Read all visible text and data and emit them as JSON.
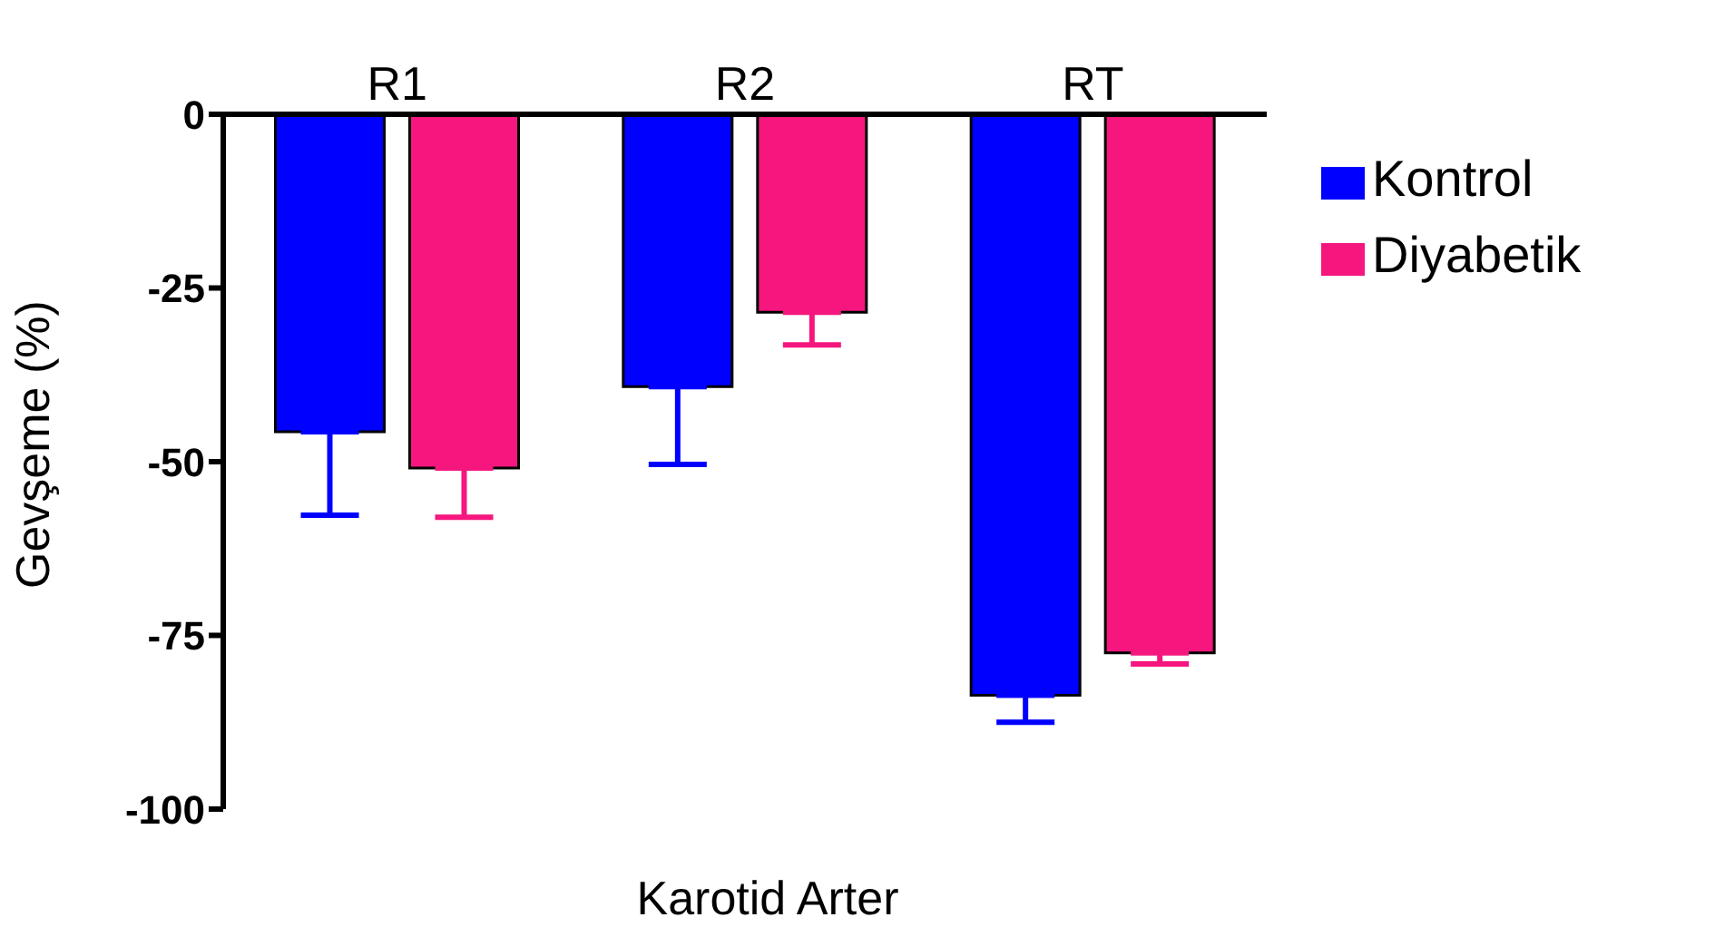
{
  "chart_data": {
    "type": "bar",
    "xlabel": "Karotid Arter",
    "ylabel": "Gevşeme (%)",
    "categories": [
      "R1",
      "R2",
      "RT"
    ],
    "series": [
      {
        "name": "Kontrol",
        "color": "#0000ff",
        "values": [
          -45.7,
          -39.2,
          -83.6
        ],
        "errors": [
          [
            -57.7,
            -45.7
          ],
          [
            -50.4,
            -39.2
          ],
          [
            -87.5,
            -83.6
          ]
        ]
      },
      {
        "name": "Diyabetik",
        "color": "#f5167e",
        "values": [
          -50.9,
          -28.5,
          -77.5
        ],
        "errors": [
          [
            -58,
            -50.9
          ],
          [
            -33.2,
            -28.5
          ],
          [
            -79.1,
            -77.5
          ]
        ]
      }
    ],
    "ylim": [
      -100,
      0
    ],
    "yticks": [
      -100,
      -75,
      -50,
      -25,
      0
    ],
    "grid": false,
    "legend": "right"
  }
}
